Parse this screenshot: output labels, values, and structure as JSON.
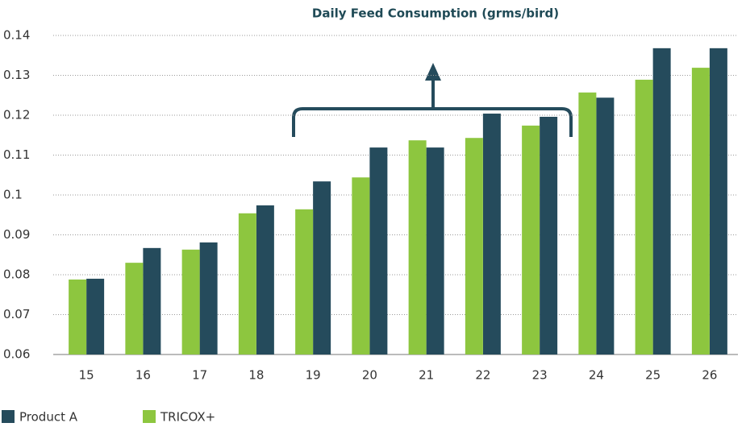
{
  "chart_data": {
    "type": "bar",
    "title": "Daily Feed Consumption (grms/bird)",
    "categories": [
      "15",
      "16",
      "17",
      "18",
      "19",
      "20",
      "21",
      "22",
      "23",
      "24",
      "25",
      "26"
    ],
    "series": [
      {
        "name": "Product A",
        "color": "#254b5c",
        "values": [
          0.079,
          0.0867,
          0.0881,
          0.0974,
          0.1034,
          0.1119,
          0.1119,
          0.1204,
          0.1196,
          0.1244,
          0.1368,
          0.1368
        ]
      },
      {
        "name": "TRICOX+",
        "color": "#8dc63f",
        "values": [
          0.0788,
          0.083,
          0.0863,
          0.0954,
          0.0964,
          0.1044,
          0.1137,
          0.1143,
          0.1174,
          0.1257,
          0.1289,
          0.1319
        ]
      }
    ],
    "ylim": [
      0.06,
      0.14
    ],
    "yticks": [
      0.06,
      0.07,
      0.08,
      0.09,
      0.1,
      0.11,
      0.12,
      0.13,
      0.14
    ],
    "grid": true
  }
}
